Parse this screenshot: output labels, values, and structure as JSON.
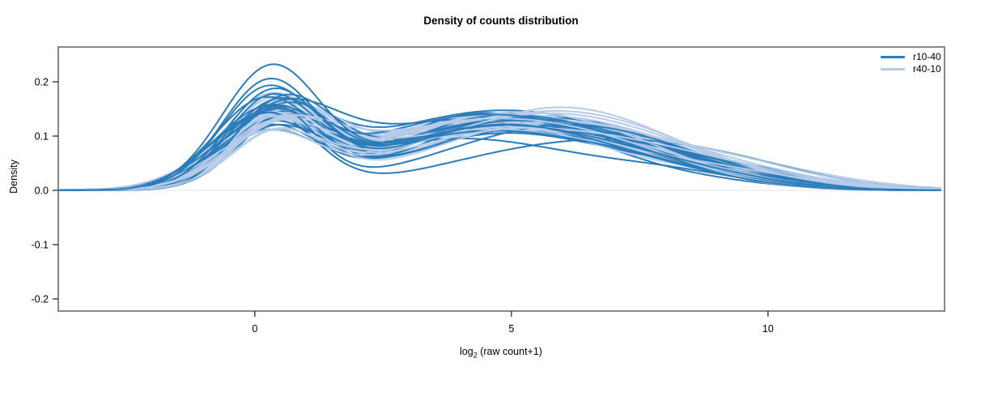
{
  "title": "Density of counts distribution",
  "legend": {
    "position": "top-right",
    "items": [
      {
        "label": "r10-40",
        "color": "#2b7cba"
      },
      {
        "label": "r40-10",
        "color": "#b6cbe7"
      }
    ]
  },
  "axes": {
    "x": {
      "label": "log2 (raw count+1)",
      "label_parts": {
        "base": "log",
        "sub": "2",
        "rest": " (raw count+1)"
      },
      "ticks": [
        "0",
        "5",
        "10"
      ]
    },
    "y": {
      "label": "Density",
      "ticks": [
        "0.2",
        "0.1",
        "0.0",
        "-0.1",
        "-0.2"
      ]
    }
  },
  "chart_data": {
    "type": "line",
    "title": "Density of counts distribution",
    "xlabel": "log2 (raw count+1)",
    "ylabel": "Density",
    "xlim": [
      -3.83,
      13.44
    ],
    "ylim": [
      -0.2224,
      0.2642
    ],
    "x_ticks": [
      0,
      5,
      10
    ],
    "y_ticks": [
      0.2,
      0.1,
      0.0,
      -0.1,
      -0.2
    ],
    "grid": false,
    "legend_position": "top-right",
    "zero_baseline": true,
    "zero_baseline_color": "#ededed",
    "frame_color": "#7a7a7a",
    "tick_color": "#1a1a1a",
    "curve_model": "density(x) = h1*G(c1,w1) + h2*G(c2,w2) + h3*G(c3,w3); each curve = [h1,c1,w1,h2,c2,w2,h3,c3,w3]; first peak near x=0.3 (density 0.10-0.235), broad second bump near x=4-6 (density 0.08-0.15), tail to ~0 by x=10-13",
    "series": [
      {
        "name": "r10-40",
        "color": "#2b7cba",
        "curves": [
          [
            0.1,
            0.36,
            0.92,
            0.118,
            4.7,
            2.3,
            0.03,
            8.8,
            1.8
          ],
          [
            0.105,
            0.24,
            1.04,
            0.128,
            5.5,
            2.2,
            0.02,
            8.0,
            1.5
          ],
          [
            0.108,
            0.44,
            0.94,
            0.115,
            4.3,
            2.6,
            0.035,
            9.0,
            1.8
          ],
          [
            0.11,
            0.3,
            0.88,
            0.135,
            5.0,
            2.1,
            0.025,
            7.4,
            1.6
          ],
          [
            0.112,
            0.52,
            1.0,
            0.122,
            4.6,
            2.4,
            0.03,
            8.2,
            1.9
          ],
          [
            0.115,
            0.38,
            0.82,
            0.105,
            4.9,
            2.2,
            0.02,
            8.6,
            1.4
          ],
          [
            0.118,
            0.48,
            0.96,
            0.125,
            4.2,
            2.5,
            0.045,
            7.0,
            2.1
          ],
          [
            0.12,
            0.22,
            1.08,
            0.112,
            5.3,
            2.3,
            0.03,
            7.8,
            2.0
          ],
          [
            0.122,
            0.33,
            0.84,
            0.142,
            4.5,
            2.0,
            0.015,
            8.4,
            1.6
          ],
          [
            0.124,
            0.6,
            0.9,
            0.118,
            4.8,
            2.2,
            0.025,
            9.2,
            1.7
          ],
          [
            0.126,
            0.18,
            1.02,
            0.098,
            4.4,
            2.4,
            0.04,
            7.2,
            1.9
          ],
          [
            0.128,
            0.42,
            0.94,
            0.132,
            5.1,
            2.1,
            0.02,
            8.8,
            1.5
          ],
          [
            0.13,
            0.28,
            0.86,
            0.108,
            4.6,
            2.5,
            0.035,
            7.6,
            2.0
          ],
          [
            0.132,
            0.5,
            1.1,
            0.128,
            4.1,
            2.2,
            0.03,
            8.0,
            1.8
          ],
          [
            0.135,
            0.2,
            0.98,
            0.115,
            5.4,
            2.3,
            0.025,
            9.4,
            1.6
          ],
          [
            0.138,
            0.3,
            0.88,
            0.14,
            4.9,
            2.1,
            0.015,
            8.6,
            1.4
          ],
          [
            0.14,
            0.26,
            0.9,
            0.08,
            6.0,
            2.3,
            0.04,
            9.0,
            1.8
          ],
          [
            0.14,
            0.55,
            0.92,
            0.1,
            4.3,
            2.6,
            0.045,
            7.4,
            2.1
          ],
          [
            0.142,
            0.25,
            1.05,
            0.12,
            4.7,
            2.2,
            0.03,
            7.8,
            1.9
          ],
          [
            0.145,
            0.4,
            0.9,
            0.135,
            5.2,
            2.0,
            0.02,
            9.0,
            1.7
          ],
          [
            0.148,
            0.15,
            0.95,
            0.095,
            4.0,
            2.3,
            0.025,
            8.2,
            1.5
          ],
          [
            0.15,
            0.3,
            0.85,
            0.11,
            4.5,
            2.5,
            0.04,
            7.0,
            2.0
          ],
          [
            0.15,
            0.35,
            0.8,
            0.075,
            5.6,
            2.4,
            0.05,
            6.8,
            2.2
          ],
          [
            0.155,
            0.45,
            1.0,
            0.125,
            5.0,
            2.2,
            0.035,
            8.8,
            1.8
          ],
          [
            0.16,
            0.2,
            0.88,
            0.13,
            4.2,
            2.4,
            0.03,
            7.2,
            1.9
          ],
          [
            0.175,
            0.35,
            0.92,
            0.12,
            4.8,
            2.1,
            0.02,
            8.4,
            1.6
          ],
          [
            0.185,
            0.25,
            0.9,
            0.105,
            4.4,
            2.3,
            0.025,
            7.6,
            1.7
          ],
          [
            0.215,
            0.3,
            0.95,
            0.115,
            4.6,
            2.2,
            0.03,
            8.0,
            1.8
          ]
        ]
      },
      {
        "name": "r40-10",
        "color": "#b6cbe7",
        "curves": [
          [
            0.155,
            0.4,
            1.0,
            0.12,
            4.8,
            2.3,
            0.03,
            8.2,
            1.8
          ],
          [
            0.15,
            0.3,
            0.95,
            0.13,
            4.5,
            2.2,
            0.025,
            7.8,
            1.7
          ],
          [
            0.148,
            0.5,
            1.05,
            0.115,
            5.0,
            2.4,
            0.035,
            8.6,
            1.9
          ],
          [
            0.145,
            0.25,
            0.9,
            0.125,
            4.3,
            2.5,
            0.04,
            7.4,
            2.0
          ],
          [
            0.142,
            0.45,
            1.1,
            0.11,
            5.2,
            2.2,
            0.02,
            9.0,
            1.6
          ],
          [
            0.14,
            0.35,
            0.92,
            0.135,
            4.6,
            2.3,
            0.03,
            8.0,
            1.8
          ],
          [
            0.138,
            0.55,
            0.98,
            0.105,
            4.9,
            2.6,
            0.045,
            7.0,
            2.1
          ],
          [
            0.135,
            0.28,
            1.02,
            0.128,
            4.4,
            2.2,
            0.025,
            8.4,
            1.5
          ],
          [
            0.132,
            0.42,
            0.88,
            0.118,
            5.4,
            2.4,
            0.035,
            9.4,
            1.9
          ],
          [
            0.13,
            0.6,
            1.08,
            0.122,
            4.7,
            2.3,
            0.03,
            7.6,
            1.7
          ],
          [
            0.128,
            0.32,
            0.94,
            0.138,
            5.1,
            2.1,
            0.02,
            8.8,
            1.6
          ],
          [
            0.126,
            0.48,
            1.0,
            0.112,
            4.2,
            2.5,
            0.04,
            7.2,
            2.0
          ],
          [
            0.124,
            0.22,
            0.9,
            0.125,
            4.8,
            2.4,
            0.03,
            8.2,
            1.8
          ],
          [
            0.122,
            0.52,
            1.06,
            0.108,
            5.6,
            2.2,
            0.05,
            6.8,
            2.2
          ],
          [
            0.12,
            0.38,
            0.96,
            0.132,
            4.5,
            2.3,
            0.025,
            9.2,
            1.7
          ],
          [
            0.118,
            0.26,
            1.12,
            0.115,
            5.0,
            2.6,
            0.035,
            7.8,
            1.9
          ],
          [
            0.116,
            0.44,
            0.92,
            0.128,
            4.4,
            2.2,
            0.02,
            8.6,
            1.5
          ],
          [
            0.114,
            0.58,
            1.04,
            0.12,
            5.3,
            2.4,
            0.04,
            7.4,
            2.0
          ],
          [
            0.112,
            0.34,
            0.98,
            0.135,
            4.6,
            2.1,
            0.03,
            8.0,
            1.8
          ],
          [
            0.11,
            0.5,
            0.9,
            0.11,
            4.9,
            2.5,
            0.045,
            8.9,
            1.8
          ],
          [
            0.108,
            0.28,
            1.08,
            0.125,
            4.3,
            2.3,
            0.025,
            7.6,
            1.6
          ],
          [
            0.106,
            0.46,
            0.94,
            0.118,
            5.5,
            2.2,
            0.035,
            8.8,
            1.9
          ],
          [
            0.104,
            0.36,
            1.0,
            0.13,
            4.7,
            2.4,
            0.03,
            7.0,
            1.7
          ],
          [
            0.102,
            0.54,
            0.96,
            0.112,
            4.5,
            2.6,
            0.02,
            8.4,
            1.5
          ],
          [
            0.1,
            0.3,
            1.1,
            0.122,
            5.2,
            2.3,
            0.04,
            7.8,
            2.0
          ],
          [
            0.098,
            0.42,
            0.88,
            0.115,
            4.8,
            2.2,
            0.03,
            9.0,
            1.8
          ],
          [
            0.096,
            0.56,
            1.02,
            0.126,
            4.4,
            2.5,
            0.025,
            7.2,
            1.6
          ],
          [
            0.095,
            0.24,
            0.94,
            0.108,
            5.0,
            2.4,
            0.035,
            8.6,
            1.9
          ]
        ]
      }
    ]
  }
}
